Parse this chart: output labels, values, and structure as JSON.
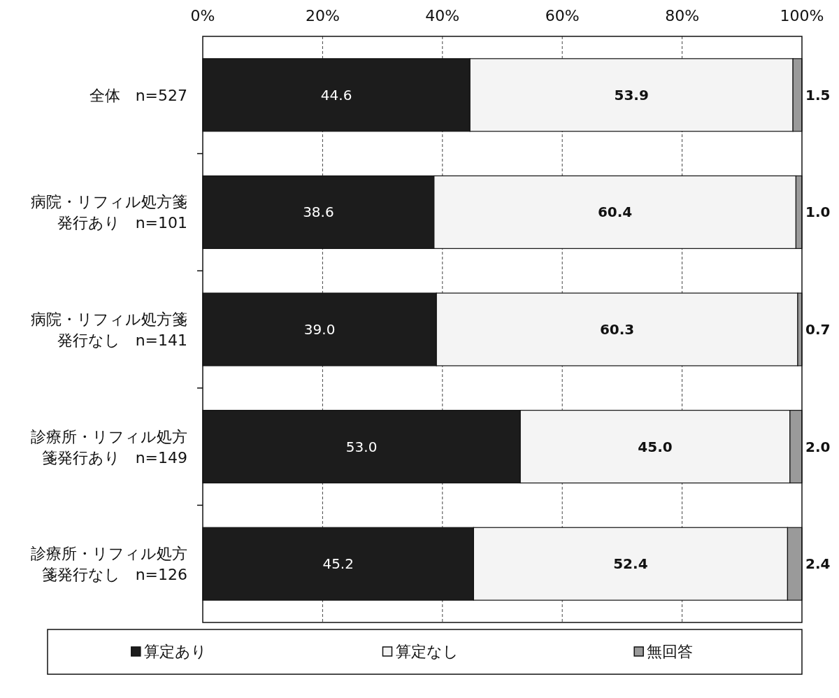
{
  "chart_data": {
    "type": "bar",
    "orientation": "horizontal",
    "stacked": true,
    "categories": [
      "全体　n=527",
      "病院・リフィル処方箋発行あり　n=101",
      "病院・リフィル処方箋発行なし　n=141",
      "診療所・リフィル処方箋発行あり　n=149",
      "診療所・リフィル処方箋発行なし　n=126"
    ],
    "series": [
      {
        "name": "算定あり",
        "color": "#1c1c1c",
        "values": [
          44.6,
          38.6,
          39.0,
          53.0,
          45.2
        ],
        "value_labels": [
          "44.6",
          "38.6",
          "39.0",
          "53.0",
          "45.2"
        ]
      },
      {
        "name": "算定なし",
        "color": "#f4f4f4",
        "values": [
          53.9,
          60.4,
          60.3,
          45.0,
          52.4
        ],
        "value_labels": [
          "53.9",
          "60.4",
          "60.3",
          "45.0",
          "52.4"
        ]
      },
      {
        "name": "無回答",
        "color": "#9a9a9a",
        "values": [
          1.5,
          1.0,
          0.7,
          2.0,
          2.4
        ],
        "value_labels": [
          "1.5",
          "1.0",
          "0.7",
          "2.0",
          "2.4"
        ]
      }
    ],
    "xlim": [
      0,
      100
    ],
    "xticks": [
      {
        "value": 0,
        "label": "0%"
      },
      {
        "value": 20,
        "label": "20%"
      },
      {
        "value": 40,
        "label": "40%"
      },
      {
        "value": 60,
        "label": "60%"
      },
      {
        "value": 80,
        "label": "80%"
      },
      {
        "value": 100,
        "label": "100%"
      }
    ],
    "grid": "x",
    "legend": "bottom"
  }
}
